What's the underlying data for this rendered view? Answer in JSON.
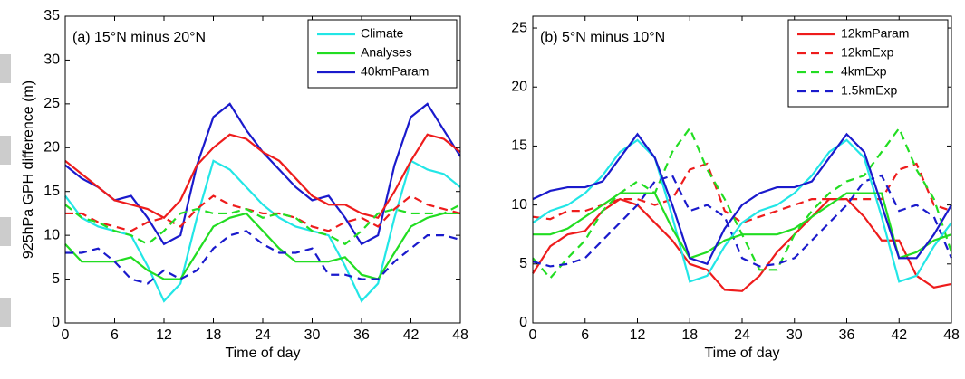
{
  "chart_data": [
    {
      "type": "line",
      "title": "(a) 15°N minus 20°N",
      "xlabel": "Time of day",
      "ylabel": "925hPa GPH difference (m)",
      "xlim": [
        0,
        48
      ],
      "xticks": [
        0,
        6,
        12,
        18,
        24,
        30,
        36,
        42,
        48
      ],
      "ylim": [
        0,
        35
      ],
      "yticks": [
        0,
        5,
        10,
        15,
        20,
        25,
        30,
        35
      ],
      "legend": "upper right",
      "x": [
        0,
        2,
        4,
        6,
        8,
        10,
        12,
        14,
        16,
        18,
        20,
        22,
        24,
        26,
        28,
        30,
        32,
        34,
        36,
        38,
        40,
        42,
        44,
        46,
        48
      ],
      "series": [
        {
          "name": "Climate",
          "color": "#22e6e6",
          "dashed": false,
          "values": [
            14.5,
            12,
            11,
            10.5,
            10,
            6.5,
            2.5,
            4.5,
            12,
            18.5,
            17.5,
            15.5,
            13.5,
            12,
            11,
            10.5,
            10,
            6.5,
            2.5,
            4.5,
            12,
            18.5,
            17.5,
            17,
            15.5
          ]
        },
        {
          "name": "Analyses",
          "color": "#22dd22",
          "dashed": false,
          "values": [
            9,
            7,
            7,
            7,
            7.5,
            6,
            5,
            5,
            8,
            11,
            12,
            12.5,
            10.5,
            8.5,
            7,
            7,
            7,
            7.5,
            5.5,
            5,
            8,
            11,
            12,
            12.5,
            12.5
          ]
        },
        {
          "name": "40kmParam",
          "color": "#1a1acc",
          "dashed": false,
          "values": [
            18,
            16.5,
            15.5,
            14,
            14.5,
            12,
            9,
            10,
            18,
            23.5,
            25,
            22,
            19.5,
            17.5,
            15.5,
            14,
            14.5,
            12,
            9,
            10,
            18,
            23.5,
            25,
            22,
            19
          ]
        },
        {
          "color": "#ee1c1c",
          "dashed": false,
          "values": [
            18.5,
            17,
            15.5,
            14,
            13.5,
            13,
            12,
            14,
            18,
            20,
            21.5,
            21,
            19.5,
            18.5,
            16.5,
            14.5,
            13.5,
            13.5,
            12.5,
            12,
            15,
            18.5,
            21.5,
            21,
            19.5
          ]
        },
        {
          "color": "#ee1c1c",
          "dashed": true,
          "values": [
            12.5,
            12.5,
            11.5,
            11,
            10.5,
            11.5,
            12,
            11,
            13,
            14.5,
            13.5,
            13,
            12.5,
            12.5,
            12,
            11,
            10.5,
            11.5,
            12,
            11,
            13,
            14.5,
            13.5,
            13,
            12.5
          ]
        },
        {
          "color": "#22dd22",
          "dashed": true,
          "values": [
            13.5,
            12,
            11.5,
            10.5,
            10,
            9,
            10.5,
            12.5,
            13,
            12.5,
            12.5,
            13,
            12,
            12.5,
            12,
            10.5,
            10,
            9,
            10.5,
            12.5,
            13,
            12.5,
            12.5,
            12.5,
            13.5
          ]
        },
        {
          "color": "#1a1acc",
          "dashed": true,
          "values": [
            8,
            8,
            8.5,
            7,
            5,
            4.5,
            6,
            5,
            6,
            8.5,
            10,
            10.5,
            9,
            8,
            8,
            8.5,
            5.5,
            5.5,
            5,
            5,
            7,
            8.5,
            10,
            10,
            9.5
          ]
        }
      ]
    },
    {
      "type": "line",
      "title": "(b) 5°N minus 10°N",
      "xlabel": "Time of day",
      "xlim": [
        0,
        48
      ],
      "xticks": [
        0,
        6,
        12,
        18,
        24,
        30,
        36,
        42,
        48
      ],
      "ylim": [
        0,
        26
      ],
      "yticks": [
        0,
        5,
        10,
        15,
        20,
        25
      ],
      "legend": "upper right",
      "x": [
        0,
        2,
        4,
        6,
        8,
        10,
        12,
        14,
        16,
        18,
        20,
        22,
        24,
        26,
        28,
        30,
        32,
        34,
        36,
        38,
        40,
        42,
        44,
        46,
        48
      ],
      "series": [
        {
          "name": "12kmParam",
          "color": "#ee1c1c",
          "dashed": false,
          "values": [
            4.2,
            6.5,
            7.5,
            7.8,
            9.5,
            10.5,
            10,
            8.5,
            7,
            5,
            4.5,
            2.8,
            2.7,
            4,
            6,
            7.5,
            9,
            10.5,
            10.5,
            9,
            7,
            7,
            4,
            3,
            3.3
          ]
        },
        {
          "name": "12kmExp",
          "color": "#ee1c1c",
          "dashed": true,
          "values": [
            9,
            8.8,
            9.5,
            9.5,
            10,
            10.5,
            10.5,
            10,
            10.5,
            13,
            13.5,
            9.5,
            8.5,
            9,
            9.5,
            10,
            10.5,
            10.5,
            10.5,
            10.5,
            10.5,
            13,
            13.5,
            10,
            9.5
          ]
        },
        {
          "name": "4kmExp",
          "color": "#22dd22",
          "dashed": true,
          "values": [
            5.5,
            3.8,
            5.5,
            7,
            9.5,
            11,
            12,
            11,
            14.5,
            16.5,
            13,
            10.5,
            7.5,
            4.5,
            4.5,
            7.5,
            9.5,
            11,
            12,
            12.5,
            14.5,
            16.5,
            13,
            10.5,
            6
          ]
        },
        {
          "name": "1.5kmExp",
          "color": "#1a1acc",
          "dashed": true,
          "values": [
            5.2,
            4.8,
            5,
            5.5,
            7,
            8.5,
            10,
            12,
            12.5,
            9.5,
            10,
            9,
            5.5,
            4.8,
            5,
            5.5,
            7,
            8.5,
            10,
            12,
            12.5,
            9.5,
            10,
            9,
            5.5
          ]
        },
        {
          "color": "#22e6e6",
          "dashed": false,
          "values": [
            8.5,
            9.5,
            10,
            11,
            12.5,
            14.5,
            15.5,
            14,
            9,
            3.5,
            4,
            6.5,
            8.5,
            9.5,
            10,
            11,
            12.5,
            14.5,
            15.5,
            14,
            9,
            3.5,
            4,
            6.5,
            8.5
          ]
        },
        {
          "color": "#22dd22",
          "dashed": false,
          "values": [
            7.5,
            7.5,
            8,
            9,
            10,
            11,
            11,
            11,
            8,
            5.5,
            6,
            7,
            7.5,
            7.5,
            7.5,
            8,
            9,
            10,
            11,
            11,
            11,
            5.5,
            6,
            7,
            7.5
          ]
        },
        {
          "color": "#1a1acc",
          "dashed": false,
          "values": [
            10.5,
            11.2,
            11.5,
            11.5,
            12,
            14,
            16,
            14,
            10,
            5.5,
            5,
            8,
            10,
            11,
            11.5,
            11.5,
            12,
            14,
            16,
            14.5,
            10,
            5.5,
            5.5,
            7.5,
            10
          ]
        }
      ]
    }
  ]
}
